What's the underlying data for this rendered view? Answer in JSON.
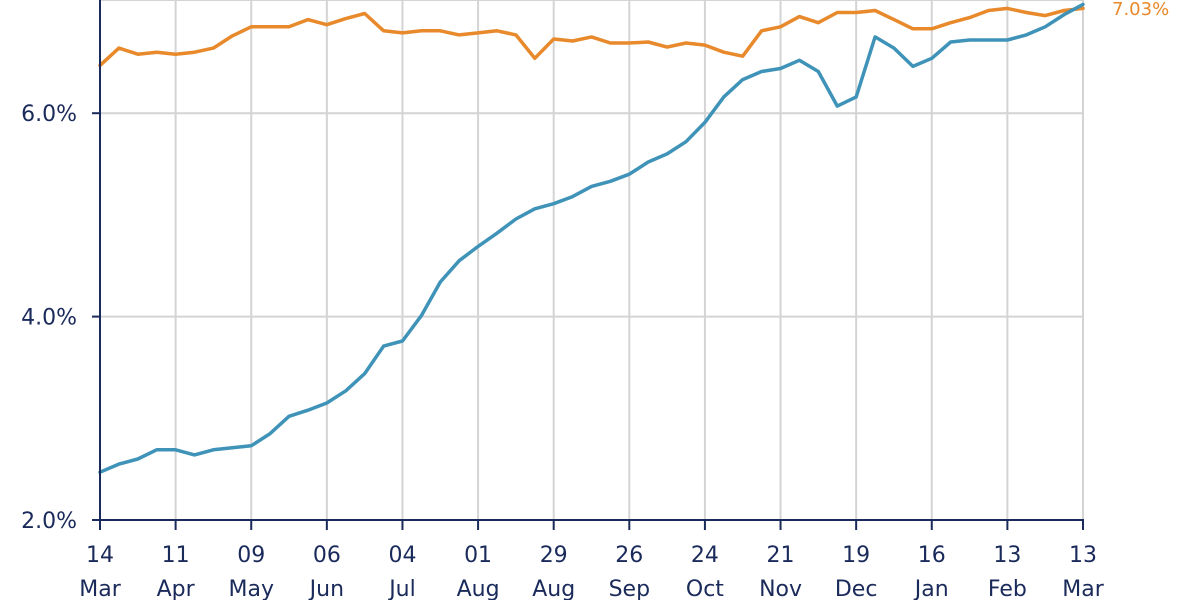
{
  "chart_data": {
    "type": "line",
    "title": "",
    "xlabel": "",
    "ylabel": "",
    "ylim": [
      2.0,
      7.0
    ],
    "y_tick_labels": [
      "2.0%",
      "4.0%",
      "6.0%"
    ],
    "x_tick_labels": [
      [
        "14",
        "Mar"
      ],
      [
        "11",
        "Apr"
      ],
      [
        "09",
        "May"
      ],
      [
        "06",
        "Jun"
      ],
      [
        "04",
        "Jul"
      ],
      [
        "01",
        "Aug"
      ],
      [
        "29",
        "Aug"
      ],
      [
        "26",
        "Sep"
      ],
      [
        "24",
        "Oct"
      ],
      [
        "21",
        "Nov"
      ],
      [
        "19",
        "Dec"
      ],
      [
        "16",
        "Jan"
      ],
      [
        "13",
        "Feb"
      ],
      [
        "13",
        "Mar"
      ]
    ],
    "grid": true,
    "end_label": "7.03%",
    "series": [
      {
        "color": "#e8892b",
        "weeks": [
          0,
          1,
          2,
          3,
          4,
          5,
          6,
          7,
          8,
          9,
          10,
          11,
          12,
          13,
          14,
          15,
          16,
          17,
          18,
          19,
          20,
          21,
          22,
          23,
          24,
          25,
          26,
          27,
          28,
          29,
          30,
          31,
          32,
          33,
          34,
          35,
          36,
          37,
          38,
          39,
          40,
          41,
          42,
          43,
          44,
          45,
          46,
          47,
          48,
          49,
          50,
          51,
          52
        ],
        "values": [
          6.47,
          6.64,
          6.58,
          6.6,
          6.58,
          6.6,
          6.64,
          6.76,
          6.85,
          6.85,
          6.85,
          6.92,
          6.87,
          6.93,
          6.98,
          6.81,
          6.79,
          6.81,
          6.81,
          6.77,
          6.79,
          6.81,
          6.77,
          6.54,
          6.73,
          6.71,
          6.75,
          6.69,
          6.69,
          6.7,
          6.65,
          6.69,
          6.67,
          6.6,
          6.56,
          6.81,
          6.85,
          6.95,
          6.89,
          6.99,
          6.99,
          7.01,
          6.92,
          6.83,
          6.83,
          6.89,
          6.94,
          7.01,
          7.03,
          6.99,
          6.96,
          7.01,
          7.03
        ]
      },
      {
        "color": "#3f93b8",
        "weeks": [
          0,
          1,
          2,
          3,
          4,
          5,
          6,
          7,
          8,
          9,
          10,
          11,
          12,
          13,
          14,
          15,
          16,
          17,
          18,
          19,
          20,
          21,
          22,
          23,
          24,
          25,
          26,
          27,
          28,
          29,
          30,
          31,
          32,
          33,
          34,
          35,
          36,
          37,
          38,
          39,
          40,
          41,
          42,
          43,
          44,
          45,
          46,
          47,
          48,
          49,
          50,
          51,
          52
        ],
        "values": [
          2.47,
          2.55,
          2.6,
          2.69,
          2.69,
          2.64,
          2.69,
          2.71,
          2.73,
          2.85,
          3.02,
          3.08,
          3.15,
          3.27,
          3.44,
          3.71,
          3.76,
          4.01,
          4.34,
          4.55,
          4.69,
          4.82,
          4.96,
          5.06,
          5.11,
          5.18,
          5.28,
          5.33,
          5.4,
          5.52,
          5.6,
          5.72,
          5.91,
          6.16,
          6.33,
          6.41,
          6.44,
          6.52,
          6.41,
          6.07,
          6.16,
          6.75,
          6.64,
          6.46,
          6.54,
          6.7,
          6.72,
          6.72,
          6.72,
          6.77,
          6.85,
          6.97,
          7.07
        ]
      }
    ],
    "series_colors": {
      "orange": "#e8892b",
      "blue": "#3f93b8"
    }
  }
}
